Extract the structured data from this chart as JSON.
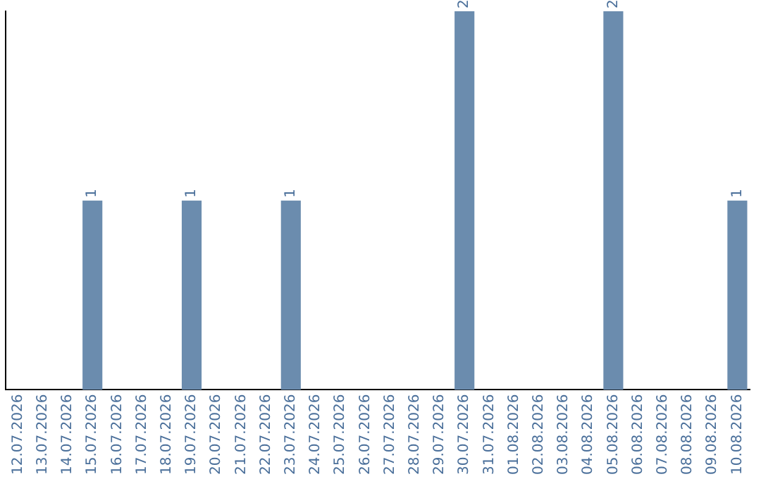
{
  "chart_data": {
    "type": "bar",
    "categories": [
      "12.07.2026",
      "13.07.2026",
      "14.07.2026",
      "15.07.2026",
      "16.07.2026",
      "17.07.2026",
      "18.07.2026",
      "19.07.2026",
      "20.07.2026",
      "21.07.2026",
      "22.07.2026",
      "23.07.2026",
      "24.07.2026",
      "25.07.2026",
      "26.07.2026",
      "27.07.2026",
      "28.07.2026",
      "29.07.2026",
      "30.07.2026",
      "31.07.2026",
      "01.08.2026",
      "02.08.2026",
      "03.08.2026",
      "04.08.2026",
      "05.08.2026",
      "06.08.2026",
      "07.08.2026",
      "08.08.2026",
      "09.08.2026",
      "10.08.2026"
    ],
    "values": [
      0,
      0,
      0,
      1,
      0,
      0,
      0,
      1,
      0,
      0,
      0,
      1,
      0,
      0,
      0,
      0,
      0,
      0,
      2,
      0,
      0,
      0,
      0,
      0,
      2,
      0,
      0,
      0,
      0,
      1
    ],
    "value_labels": [
      null,
      null,
      null,
      "1",
      null,
      null,
      null,
      "1",
      null,
      null,
      null,
      "1",
      null,
      null,
      null,
      null,
      null,
      null,
      "2",
      null,
      null,
      null,
      null,
      null,
      "2",
      null,
      null,
      null,
      null,
      "1"
    ],
    "color": "#6b8cae",
    "ylim": [
      0,
      2
    ],
    "tick_labels": "x",
    "grid": false,
    "legend": false
  }
}
